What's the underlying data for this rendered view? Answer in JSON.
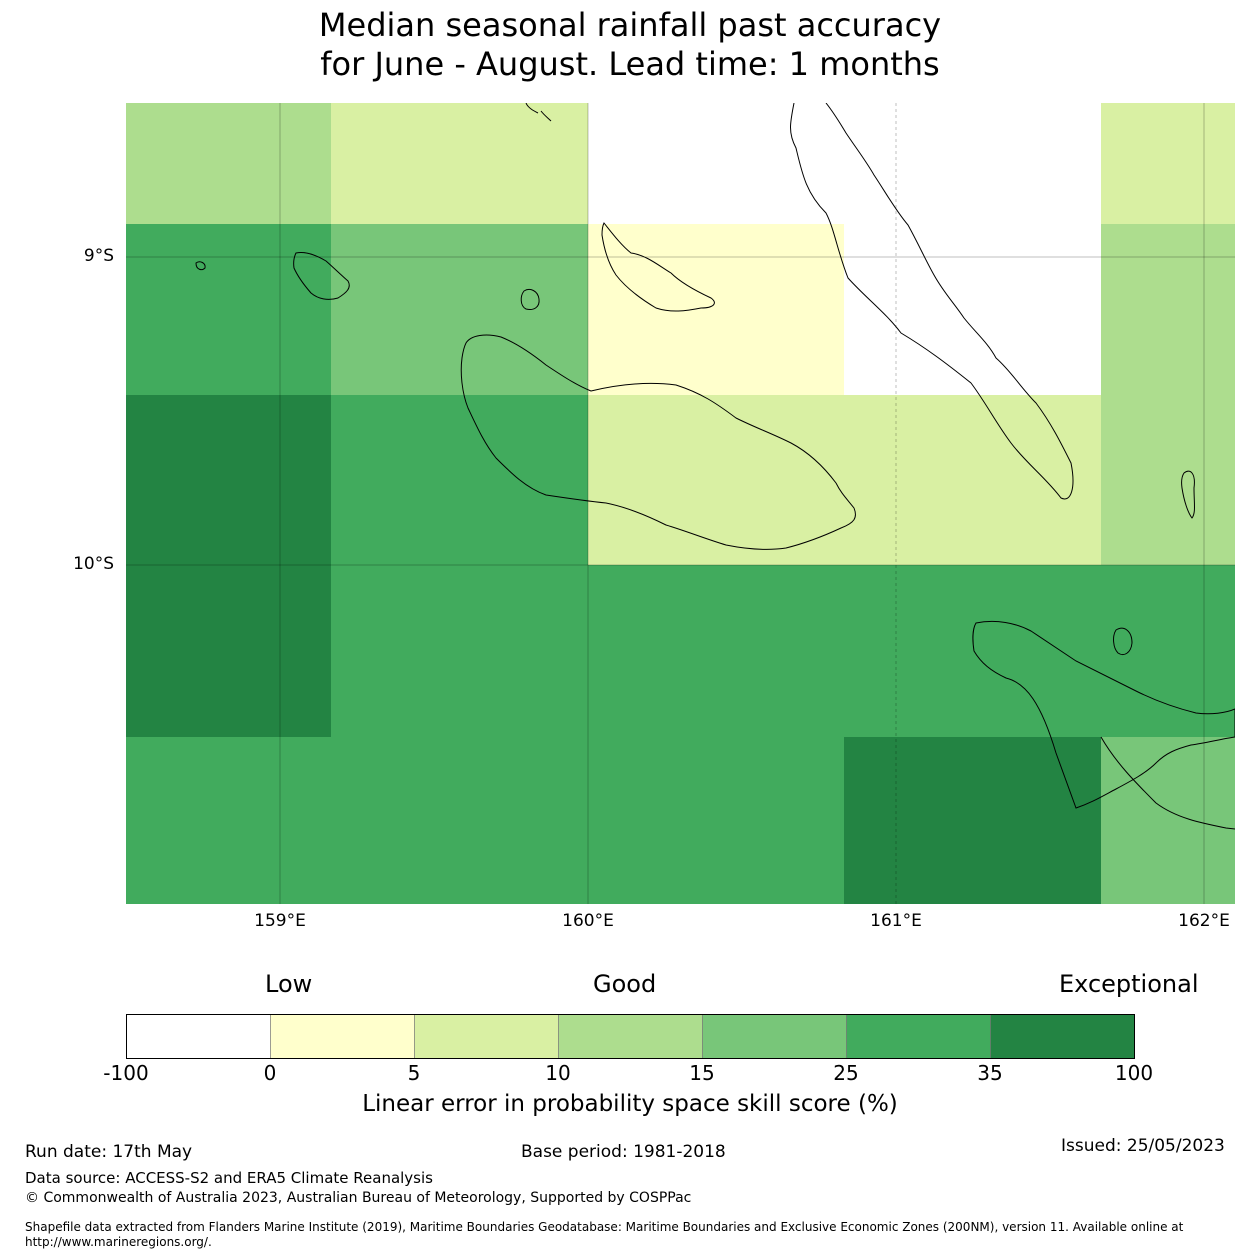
{
  "title_line1": "Median seasonal rainfall past accuracy",
  "title_line2": "for June - August. Lead time: 1 months",
  "map": {
    "lon_range": [
      158.5,
      162.1
    ],
    "lat_range": [
      -9.5,
      -11.1
    ],
    "lon_ticks": [
      {
        "value": 159,
        "label": "159°E"
      },
      {
        "value": 160,
        "label": "160°E"
      },
      {
        "value": 161,
        "label": "161°E"
      },
      {
        "value": 162,
        "label": "162°E"
      }
    ],
    "lat_ticks": [
      {
        "value": -9,
        "label": "9°S"
      },
      {
        "value": -10,
        "label": "10°S"
      }
    ]
  },
  "categories": {
    "low": "Low",
    "good": "Good",
    "exceptional": "Exceptional"
  },
  "colorbar": {
    "ticks": [
      "-100",
      "0",
      "5",
      "10",
      "15",
      "25",
      "35",
      "100"
    ],
    "colors": [
      "#ffffff",
      "#ffffcc",
      "#d9f0a3",
      "#addd8e",
      "#78c679",
      "#41ab5d",
      "#238443"
    ],
    "label": "Linear error in probability space skill score (%)"
  },
  "footer": {
    "run_date": "Run date: 17th May",
    "base_period": "Base period: 1981-2018",
    "issued": "Issued: 25/05/2023",
    "data_source": "Data source: ACCESS-S2 and ERA5 Climate Reanalysis",
    "copyright": "© Commonwealth of Australia 2023, Australian Bureau of Meteorology, Supported by COSPPac",
    "shapefile_line1": "Shapefile data extracted from Flanders Marine Institute (2019), Maritime Boundaries Geodatabase: Maritime Boundaries and Exclusive Economic Zones (200NM), version 11. Available online at",
    "shapefile_line2": "http://www.marineregions.org/."
  }
}
